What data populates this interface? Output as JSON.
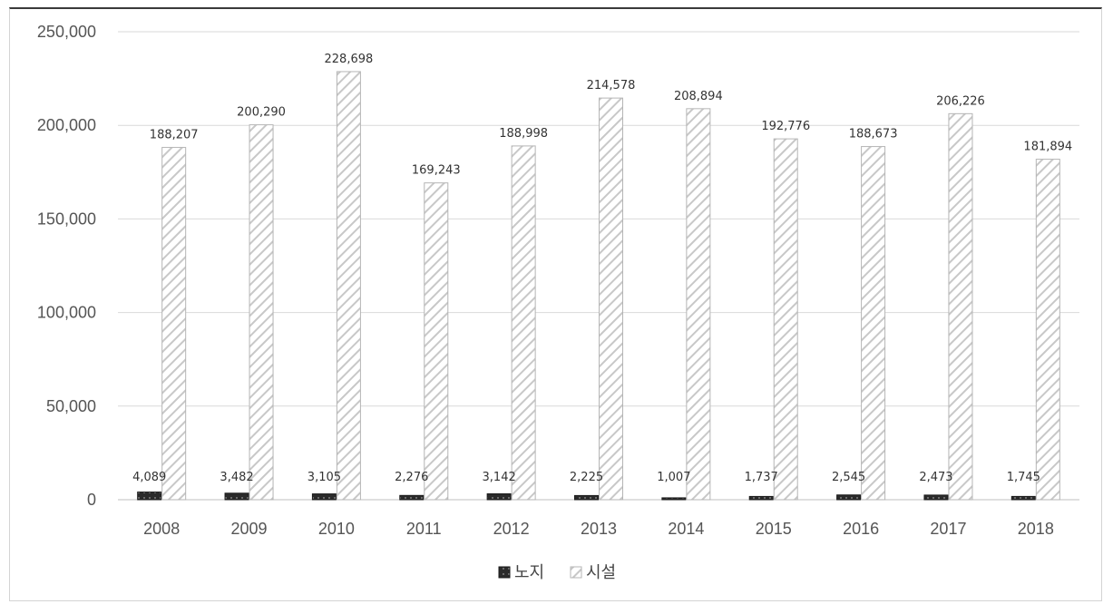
{
  "chart_data": {
    "type": "bar",
    "title": "",
    "xlabel": "",
    "ylabel": "",
    "categories": [
      "2008",
      "2009",
      "2010",
      "2011",
      "2012",
      "2013",
      "2014",
      "2015",
      "2016",
      "2017",
      "2018"
    ],
    "series": [
      {
        "name": "노지",
        "values": [
          4089,
          3482,
          3105,
          2276,
          3142,
          2225,
          1007,
          1737,
          2545,
          2473,
          1745
        ],
        "labels": [
          "4,089",
          "3,482",
          "3,105",
          "2,276",
          "3,142",
          "2,225",
          "1,007",
          "1,737",
          "2,545",
          "2,473",
          "1,745"
        ],
        "fill": "#2b2b2b",
        "pattern": "dotted-dark"
      },
      {
        "name": "시설",
        "values": [
          188207,
          200290,
          228698,
          169243,
          188998,
          214578,
          208894,
          192776,
          188673,
          206226,
          181894
        ],
        "labels": [
          "188,207",
          "200,290",
          "228,698",
          "169,243",
          "188,998",
          "214,578",
          "208,894",
          "192,776",
          "188,673",
          "206,226",
          "181,894"
        ],
        "fill": "#ffffff",
        "pattern": "diagonal-hatch-light"
      }
    ],
    "ylim": [
      0,
      250000
    ],
    "yticks": [
      0,
      50000,
      100000,
      150000,
      200000,
      250000
    ],
    "ytick_labels": [
      "0",
      "50,000",
      "100,000",
      "150,000",
      "200,000",
      "250,000"
    ],
    "grid": true,
    "legend_position": "bottom-center",
    "colors": {
      "grid": "#d9d9d9",
      "axis": "#bfbfbf",
      "hatch": "#c8c8c8",
      "dark": "#2b2b2b"
    }
  }
}
